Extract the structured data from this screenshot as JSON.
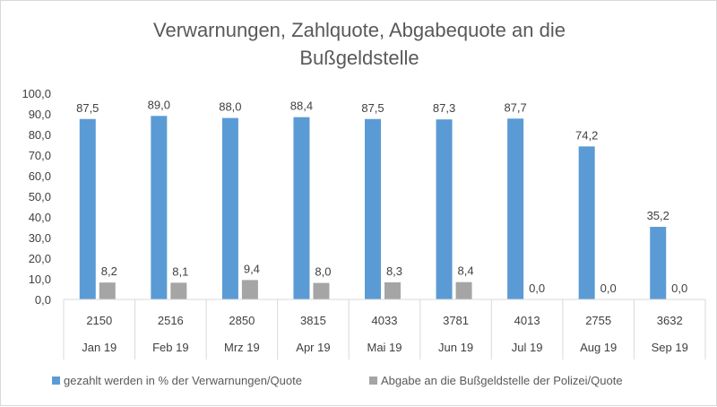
{
  "chart_data": {
    "type": "bar",
    "title_lines": [
      "Verwarnungen, Zahlquote, Abgabequote an die",
      "Bußgeldstelle"
    ],
    "categories": [
      "Jan 19",
      "Feb 19",
      "Mrz 19",
      "Apr 19",
      "Mai 19",
      "Jun 19",
      "Jul 19",
      "Aug 19",
      "Sep 19"
    ],
    "counts": [
      "2150",
      "2516",
      "2850",
      "3815",
      "4033",
      "3781",
      "4013",
      "2755",
      "3632"
    ],
    "series": [
      {
        "name": "gezahlt werden in % der Verwarnungen/Quote",
        "color": "#5b9bd5",
        "values": [
          87.5,
          89.0,
          88.0,
          88.4,
          87.5,
          87.3,
          87.7,
          74.2,
          35.2
        ],
        "labels": [
          "87,5",
          "89,0",
          "88,0",
          "88,4",
          "87,5",
          "87,3",
          "87,7",
          "74,2",
          "35,2"
        ]
      },
      {
        "name": "Abgabe an die Bußgeldstelle der Polizei/Quote",
        "color": "#a5a5a5",
        "values": [
          8.2,
          8.1,
          9.4,
          8.0,
          8.3,
          8.4,
          0.0,
          0.0,
          0.0
        ],
        "labels": [
          "8,2",
          "8,1",
          "9,4",
          "8,0",
          "8,3",
          "8,4",
          "0,0",
          "0,0",
          "0,0"
        ]
      }
    ],
    "ylim": [
      0,
      100
    ],
    "yticks": [
      "0,0",
      "10,0",
      "20,0",
      "30,0",
      "40,0",
      "50,0",
      "60,0",
      "70,0",
      "80,0",
      "90,0",
      "100,0"
    ],
    "grid": false,
    "legend_position": "bottom"
  }
}
